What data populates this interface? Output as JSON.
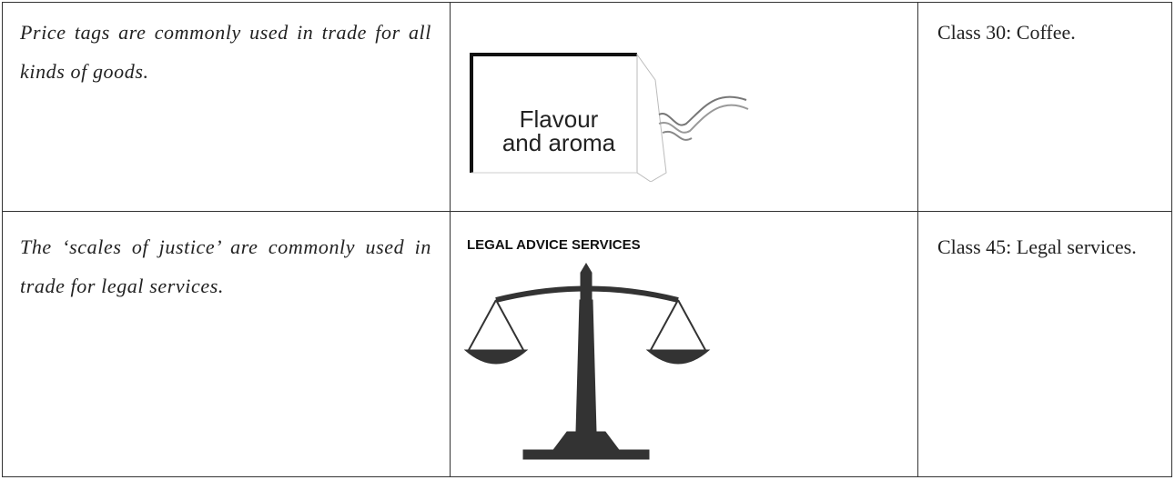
{
  "table": {
    "rows": [
      {
        "description": "Price tags are commonly used in trade for all kinds of goods.",
        "image_text": [
          "Flavour",
          "and aroma"
        ],
        "class": "Class 30: Coffee."
      },
      {
        "description": "The ‘scales of justice’ are commonly used in trade for legal services.",
        "image_text": [
          "LEGAL ADVICE SERVICES"
        ],
        "class": "Class 45: Legal services."
      }
    ]
  }
}
